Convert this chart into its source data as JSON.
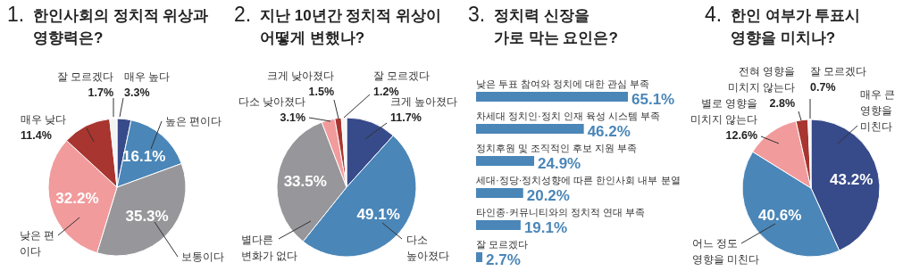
{
  "chart_data": [
    {
      "type": "pie",
      "title": "1. 한인사회의 정치적 위상과\n영향력은?",
      "categories": [
        "매우 높다",
        "높은 편이다",
        "보통이다",
        "낮은 편\n이다",
        "매우 낮다",
        "잘 모르겠다"
      ],
      "values": [
        3.3,
        16.1,
        35.3,
        32.2,
        11.4,
        1.7
      ],
      "value_labels": [
        "3.3%",
        "16.1%",
        "35.3%",
        "32.2%",
        "11.4%",
        "1.7%"
      ],
      "colors": [
        "#374a8a",
        "#4a86b8",
        "#97979b",
        "#f19b9c",
        "#a8352f",
        "#f4f4f4"
      ]
    },
    {
      "type": "pie",
      "title": "2. 지난 10년간 정치적 위상이\n어떻게 변했나?",
      "categories": [
        "크게 높아졌다",
        "다소\n높아졌다",
        "별다른\n변화가 없다",
        "다소 낮아졌다",
        "크게 낮아졌다",
        "잘 모르겠다"
      ],
      "values": [
        11.7,
        49.1,
        33.5,
        3.1,
        1.5,
        1.2
      ],
      "value_labels": [
        "11.7%",
        "49.1%",
        "33.5%",
        "3.1%",
        "1.5%",
        "1.2%"
      ],
      "colors": [
        "#374a8a",
        "#4a86b8",
        "#97979b",
        "#f19b9c",
        "#a8352f",
        "#f4f4f4"
      ]
    },
    {
      "type": "bar",
      "orientation": "horizontal",
      "title": "3. 정치력 신장을\n가로 막는 요인은?",
      "categories": [
        "낮은 투표 참여와 정치에 대한 관심 부족",
        "차세대 정치인·정치 인재 육성 시스템 부족",
        "정치후원 및 조직적인 후보 지원 부족",
        "세대·정당·정치성향에 따른 한인사회 내부 분열",
        "타인종·커뮤니티와의 정치적 연대 부족",
        "잘 모르겠다"
      ],
      "values": [
        65.1,
        46.2,
        24.9,
        20.2,
        19.1,
        2.7
      ],
      "value_labels": [
        "65.1%",
        "46.2%",
        "24.9%",
        "20.2%",
        "19.1%",
        "2.7%"
      ],
      "color": "#4a86b8"
    },
    {
      "type": "pie",
      "title": "4. 한인 여부가 투표시\n영향을 미치나?",
      "categories": [
        "매우 큰\n영향을\n미친다",
        "어느 정도\n영향을 미친다",
        "별로 영향을\n미치지 않는다",
        "전혀 영향을\n미치지 않는다",
        "잘 모르겠다"
      ],
      "values": [
        43.2,
        40.6,
        12.6,
        2.8,
        0.7
      ],
      "value_labels": [
        "43.2%",
        "40.6%",
        "12.6%",
        "2.8%",
        "0.7%"
      ],
      "colors": [
        "#374a8a",
        "#4a86b8",
        "#f19b9c",
        "#a8352f",
        "#f4f4f4"
      ]
    }
  ]
}
